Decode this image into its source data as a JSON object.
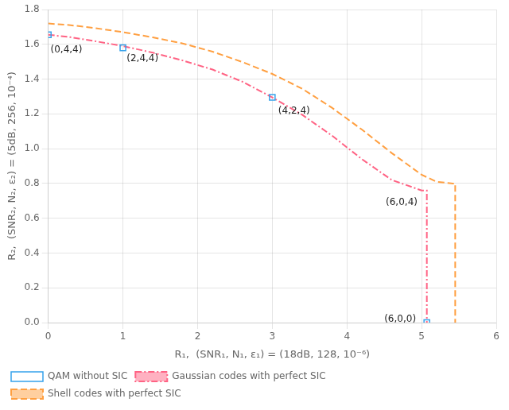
{
  "chart_data": {
    "type": "line",
    "xlabel": "R₁,  (SNR₁, N₁, ε₁) = (18dB, 128, 10⁻⁶)",
    "ylabel": "R₂,  (SNR₂, N₂, ε₂) = (5dB, 256, 10⁻⁴)",
    "xlim": [
      0,
      6
    ],
    "ylim": [
      0,
      1.8
    ],
    "xticks": [
      0,
      1,
      2,
      3,
      4,
      5,
      6
    ],
    "yticks": [
      {
        "value": 0,
        "label": "0.0"
      },
      0.2,
      0.4,
      0.6,
      0.8,
      {
        "value": 1.0,
        "label": "1.0"
      },
      1.2,
      1.4,
      1.6,
      1.8
    ],
    "grid": true,
    "legend": "lower left",
    "series": [
      {
        "name": "QAM without SIC",
        "type": "scatter",
        "marker": "square",
        "x": [
          0.0,
          1.0,
          3.0,
          5.07
        ],
        "values": [
          1.655,
          1.58,
          1.295,
          0.0
        ]
      },
      {
        "name": "Gaussian codes with perfect SIC",
        "type": "line",
        "line_style": "dashdot",
        "x": [
          0.0,
          0.3,
          0.6,
          1.0,
          1.4,
          1.8,
          2.2,
          2.6,
          3.0,
          3.4,
          3.8,
          4.2,
          4.6,
          5.0,
          5.07,
          5.07,
          5.07
        ],
        "values": [
          1.655,
          1.641,
          1.62,
          1.59,
          1.552,
          1.507,
          1.455,
          1.385,
          1.295,
          1.195,
          1.075,
          0.94,
          0.82,
          0.76,
          0.76,
          0.001,
          0.0
        ]
      },
      {
        "name": "Shell codes with perfect SIC",
        "type": "line",
        "line_style": "dashed",
        "x": [
          0.0,
          0.3,
          0.6,
          1.0,
          1.4,
          1.8,
          2.2,
          2.6,
          3.0,
          3.4,
          3.8,
          4.2,
          4.6,
          5.0,
          5.2,
          5.42,
          5.45,
          5.45
        ],
        "values": [
          1.72,
          1.71,
          1.695,
          1.67,
          1.64,
          1.605,
          1.558,
          1.498,
          1.43,
          1.345,
          1.235,
          1.11,
          0.975,
          0.85,
          0.81,
          0.8,
          0.8,
          0.0
        ]
      }
    ],
    "annotations": [
      {
        "text": "(0,4,4)",
        "x": 0.03,
        "y": 1.595
      },
      {
        "text": "(2,4,4)",
        "x": 1.05,
        "y": 1.543
      },
      {
        "text": "(4,2,4)",
        "x": 3.08,
        "y": 1.245
      },
      {
        "text": "(6,0,4)",
        "x": 4.52,
        "y": 0.718
      },
      {
        "text": "(6,0,0)",
        "x": 4.5,
        "y": 0.045
      }
    ]
  }
}
